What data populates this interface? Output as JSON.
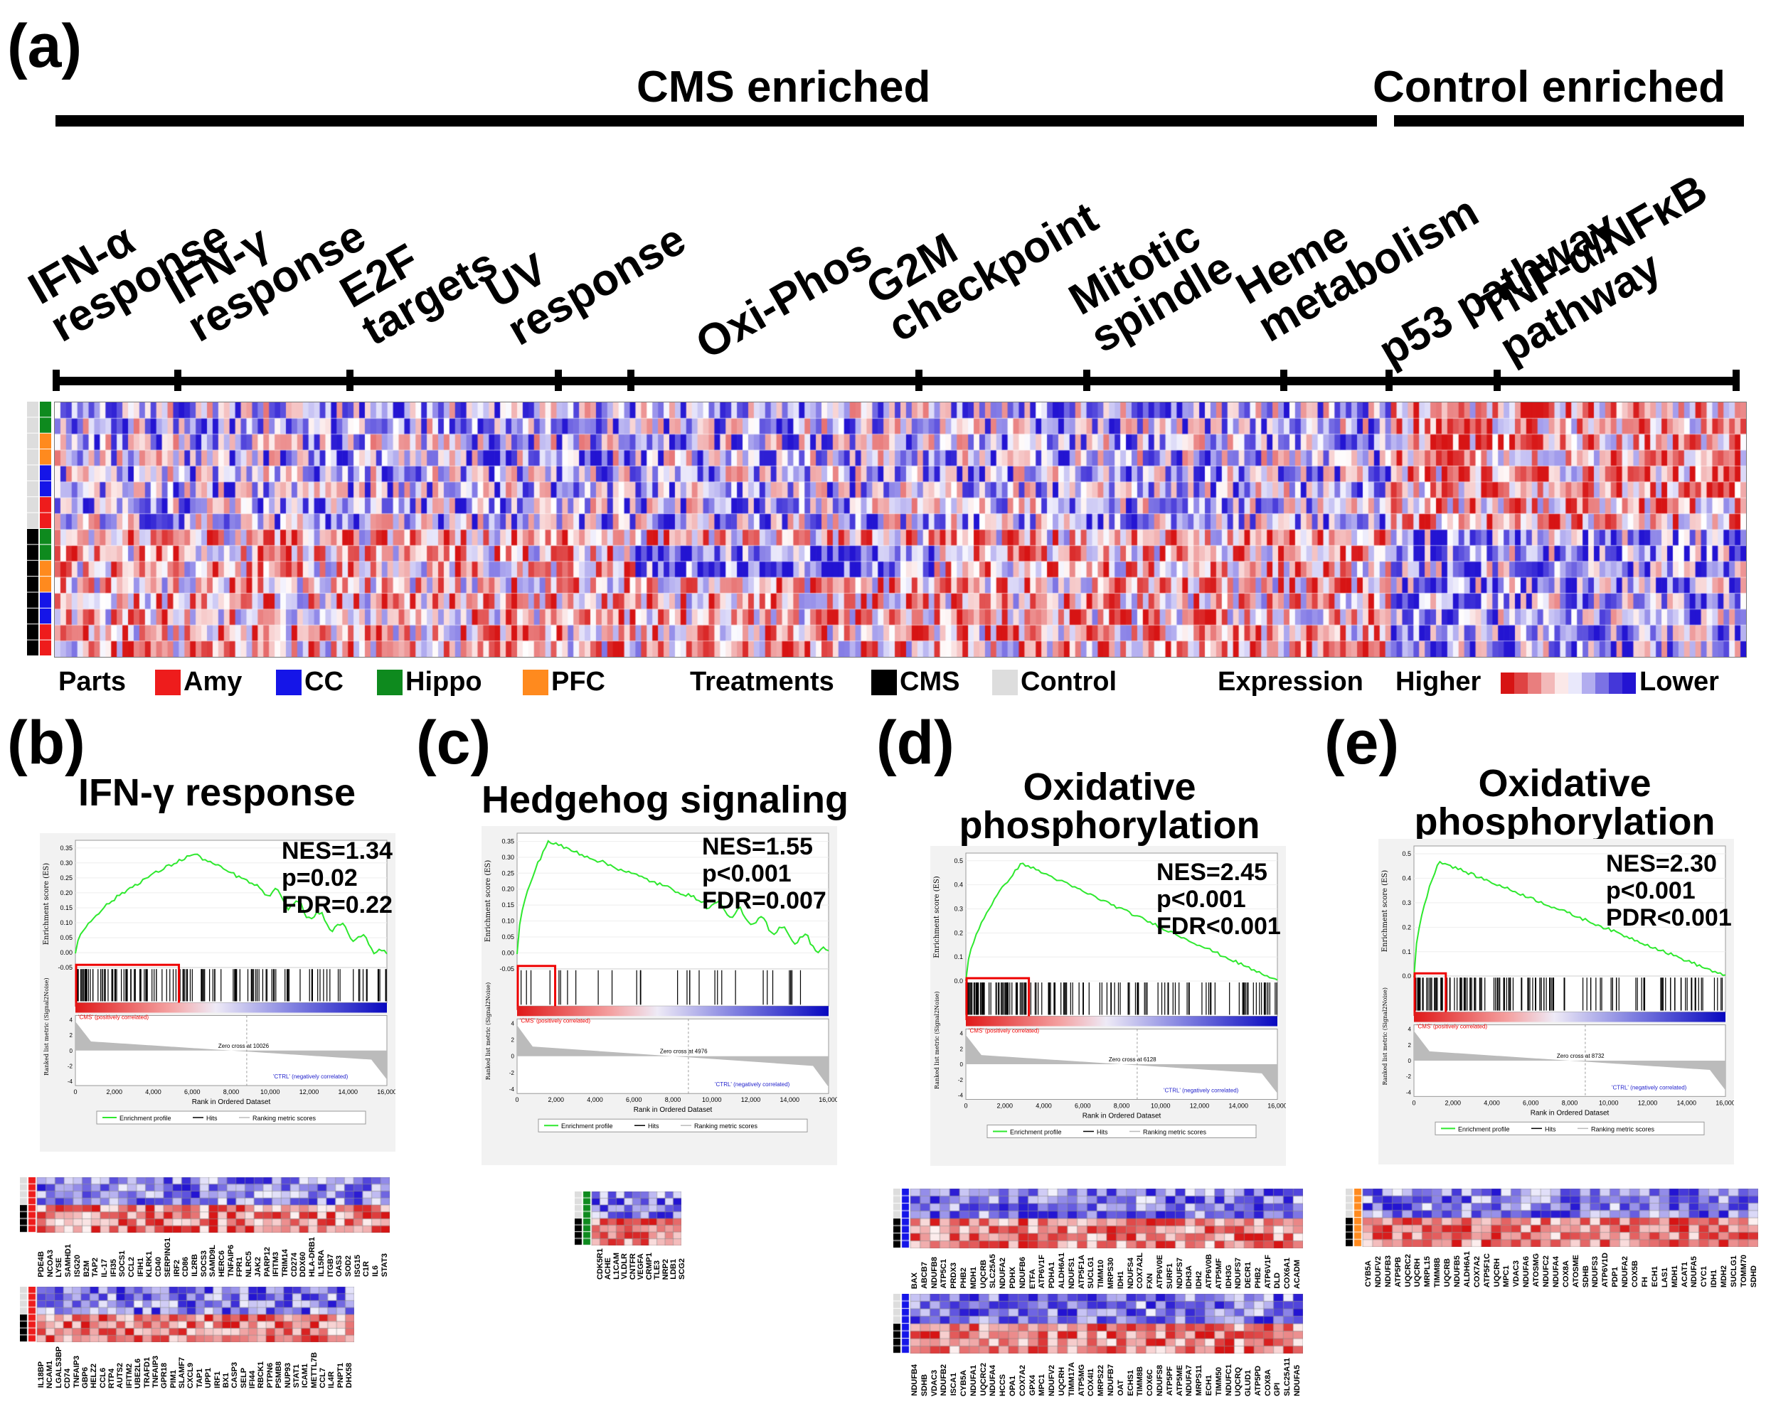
{
  "panel_a": {
    "label": "(a)",
    "cms_enriched": "CMS enriched",
    "control_enriched": "Control enriched",
    "pathways": [
      {
        "line1": "IFN-α",
        "line2": "response"
      },
      {
        "line1": "IFN-γ",
        "line2": "response"
      },
      {
        "line1": "E2F",
        "line2": "targets"
      },
      {
        "line1": "UV",
        "line2": "response"
      },
      {
        "line1": "Oxi-Phos",
        "line2": ""
      },
      {
        "line1": "G2M",
        "line2": "checkpoint"
      },
      {
        "line1": "Mitotic",
        "line2": "spindle"
      },
      {
        "line1": "Heme",
        "line2": "metabolism"
      },
      {
        "line1": "p53 pathway",
        "line2": ""
      },
      {
        "line1": "TNF-α/NFκB",
        "line2": "pathway"
      }
    ],
    "legend": {
      "parts_label": "Parts",
      "parts": [
        {
          "name": "Amy",
          "color": "#ee1c1c"
        },
        {
          "name": "CC",
          "color": "#1515e8"
        },
        {
          "name": "Hippo",
          "color": "#0e8a1e"
        },
        {
          "name": "PFC",
          "color": "#ff8a1e"
        }
      ],
      "treatments_label": "Treatments",
      "treatments": [
        {
          "name": "CMS",
          "color": "#000000"
        },
        {
          "name": "Control",
          "color": "#dddddd"
        }
      ],
      "expression_label": "Expression",
      "higher": "Higher",
      "lower": "Lower"
    }
  },
  "panels": [
    {
      "label": "(b)",
      "title_line1": "IFN-γ response",
      "title_line2": "",
      "nes": "NES=1.34",
      "p": "p=0.02",
      "fdr": "FDR=0.22",
      "ylabel": "Enrichment score (ES)",
      "yticks": [
        "0.35",
        "0.30",
        "0.25",
        "0.20",
        "0.15",
        "0.10",
        "0.05",
        "0.00",
        "-0.05"
      ],
      "zero_cross": "Zero cross at 10026",
      "genes1": [
        "PDE4B",
        "NCOA3",
        "LYSE",
        "SAMHD1",
        "ISG20",
        "B2M",
        "TAP2",
        "IL-17",
        "IFI35",
        "SOCS1",
        "CCL2",
        "IFIH1",
        "KLRK1",
        "CD40",
        "SERPING1",
        "IRF2",
        "CD86",
        "IL2RB",
        "SOCS3",
        "SAMD9L",
        "HERC6",
        "TNFAIP6",
        "FPR1",
        "NLRC5",
        "JAK2",
        "PARP12",
        "IFITM3",
        "TRIM14",
        "CD274",
        "DDX60",
        "HLA-DRB1",
        "IL15RA",
        "ITGB7",
        "OAS3",
        "SOD2",
        "ISG15",
        "C1R",
        "IL6",
        "STAT3"
      ],
      "genes2": [
        "IL18BP",
        "NCAM1",
        "LGALS3BP",
        "CD74",
        "TNFAIP3",
        "GBP6",
        "HELZ2",
        "CCL6",
        "RTP4",
        "AUTS2",
        "IFITM2",
        "UBE2L6",
        "TRAFD1",
        "TNFAIP3",
        "GPR18",
        "PIM1",
        "SLAMF7",
        "CXCL9",
        "TAP1",
        "UPP1",
        "IRF1",
        "BX1",
        "CASP3",
        "SELP",
        "IFI44",
        "RBCK1",
        "PTPN6",
        "PSMB8",
        "NUP93",
        "STAT1",
        "ICAM1",
        "METTL7B",
        "CCL7",
        "IL4R",
        "PNPT1",
        "DHX58"
      ]
    },
    {
      "label": "(c)",
      "title_line1": "Hedgehog signaling",
      "title_line2": "",
      "nes": "NES=1.55",
      "p": "p<0.001",
      "fdr": "FDR=0.007",
      "ylabel": "Enrichment score (ES)",
      "yticks": [
        "0.35",
        "0.30",
        "0.25",
        "0.20",
        "0.15",
        "0.10",
        "0.05",
        "0.00",
        "-0.05"
      ],
      "zero_cross": "Zero cross at 4976",
      "genes1": [
        "CDK5R1",
        "ACHE",
        "L1CAM",
        "VLDLR",
        "CNTFR",
        "VEGFA",
        "CRMP1",
        "TLE3",
        "NRP2",
        "LDB1",
        "SCG2"
      ],
      "genes2": []
    },
    {
      "label": "(d)",
      "title_line1": "Oxidative",
      "title_line2": "phosphorylation",
      "nes": "NES=2.45",
      "p": "p<0.001",
      "fdr": "FDR<0.001",
      "ylabel": "Enrichment score (ES)",
      "yticks": [
        "0.5",
        "0.4",
        "0.3",
        "0.2",
        "0.1",
        "0.0"
      ],
      "zero_cross": "Zero cross at 6128",
      "genes1": [
        "BAX",
        "ABCB7",
        "NDUFB8",
        "ATP5C1",
        "PRDX3",
        "PHB2",
        "MDH1",
        "UQCRB",
        "SLC25A5",
        "NDUFA2",
        "PDHX",
        "NDUFB6",
        "ETFA",
        "ATP6V1F",
        "PDHA1",
        "ALDH6A1",
        "NDUFS1",
        "ATP5F1A",
        "SUCLG1",
        "TIMM10",
        "MRPS30",
        "IDH1",
        "NDUFS4",
        "COX7A2L",
        "FXN",
        "ATP6V0E",
        "SURF1",
        "NDUFS7",
        "IDH3A",
        "IDH2",
        "ATP6V0B",
        "ATP5MF",
        "IDH3G",
        "NDUFS7",
        "DECR1",
        "PHB2",
        "ATP6V1F",
        "DLD",
        "COX6A1",
        "ACADM"
      ],
      "genes2": [
        "NDUFB4",
        "SDHB",
        "VDAC3",
        "NDUFB2",
        "ISCA1",
        "CYB5A",
        "NDUFA1",
        "UQCRC2",
        "NDUFA4",
        "HCCS",
        "OPA1",
        "COX7A2",
        "GPX4",
        "MPC1",
        "NDUFV2",
        "UQCRH",
        "TIMM17A",
        "ATP5MG",
        "COX4I1",
        "MRPS22",
        "NDUFB7",
        "OAT",
        "ECHS1",
        "TIMM8B",
        "COX6C",
        "NDUFS8",
        "ATP5PF",
        "ATP5ME",
        "NDUFA7",
        "MRPS11",
        "ECH1",
        "TIMM50",
        "NDUFC1",
        "UQCRQ",
        "GLUD1",
        "ATP5PD",
        "COX8A",
        "GPI",
        "SLC25A11",
        "NDUFA5"
      ]
    },
    {
      "label": "(e)",
      "title_line1": "Oxidative",
      "title_line2": "phosphorylation",
      "nes": "NES=2.30",
      "p": "p<0.001",
      "fdr": "PDR<0.001",
      "ylabel": "Enrichment score (ES)",
      "yticks": [
        "0.5",
        "0.4",
        "0.3",
        "0.2",
        "0.1",
        "0.0"
      ],
      "zero_cross": "Zero cross at 8732",
      "genes1": [
        "CYB5A",
        "NDUFV2",
        "NDUFB3",
        "ATP5PB",
        "UQCRC2",
        "UQCRH",
        "MRPL15",
        "TIMM8B",
        "UQCRB",
        "NDUFB5",
        "ALDH6A1",
        "COX7A2",
        "ATP5F1C",
        "UQCRH",
        "MPC1",
        "VDAC3",
        "NDUFA6",
        "ATOSMG",
        "NDUFC2",
        "NDUFA4",
        "COX8A",
        "ATOSME",
        "SDHB",
        "NDUFS3",
        "ATP6V1D",
        "PDP1",
        "NDUFA2",
        "COX5B",
        "FH",
        "ECH1",
        "LAS1",
        "MDH1",
        "ACAT1",
        "NDUFA5",
        "CYC1",
        "IDH1",
        "MDH2",
        "SUCLG1",
        "TOMM70",
        "SDHD"
      ],
      "genes2": []
    }
  ],
  "gsea_common": {
    "hits_label_pos": "'CMS' (positively correlated)",
    "hits_label_neg": "'CTRL' (negatively correlated)",
    "ranked_ylabel": "Ranked list metric (Signal2Noise)",
    "ranked_yticks": [
      "4",
      "2",
      "0",
      "-2",
      "-4"
    ],
    "xlabel": "Rank in Ordered Dataset",
    "xticks": [
      "0",
      "2,000",
      "4,000",
      "6,000",
      "8,000",
      "10,000",
      "12,000",
      "14,000",
      "16,000"
    ],
    "legend_enrich": "Enrichment profile",
    "legend_hits": "Hits",
    "legend_rank": "Ranking metric scores"
  }
}
